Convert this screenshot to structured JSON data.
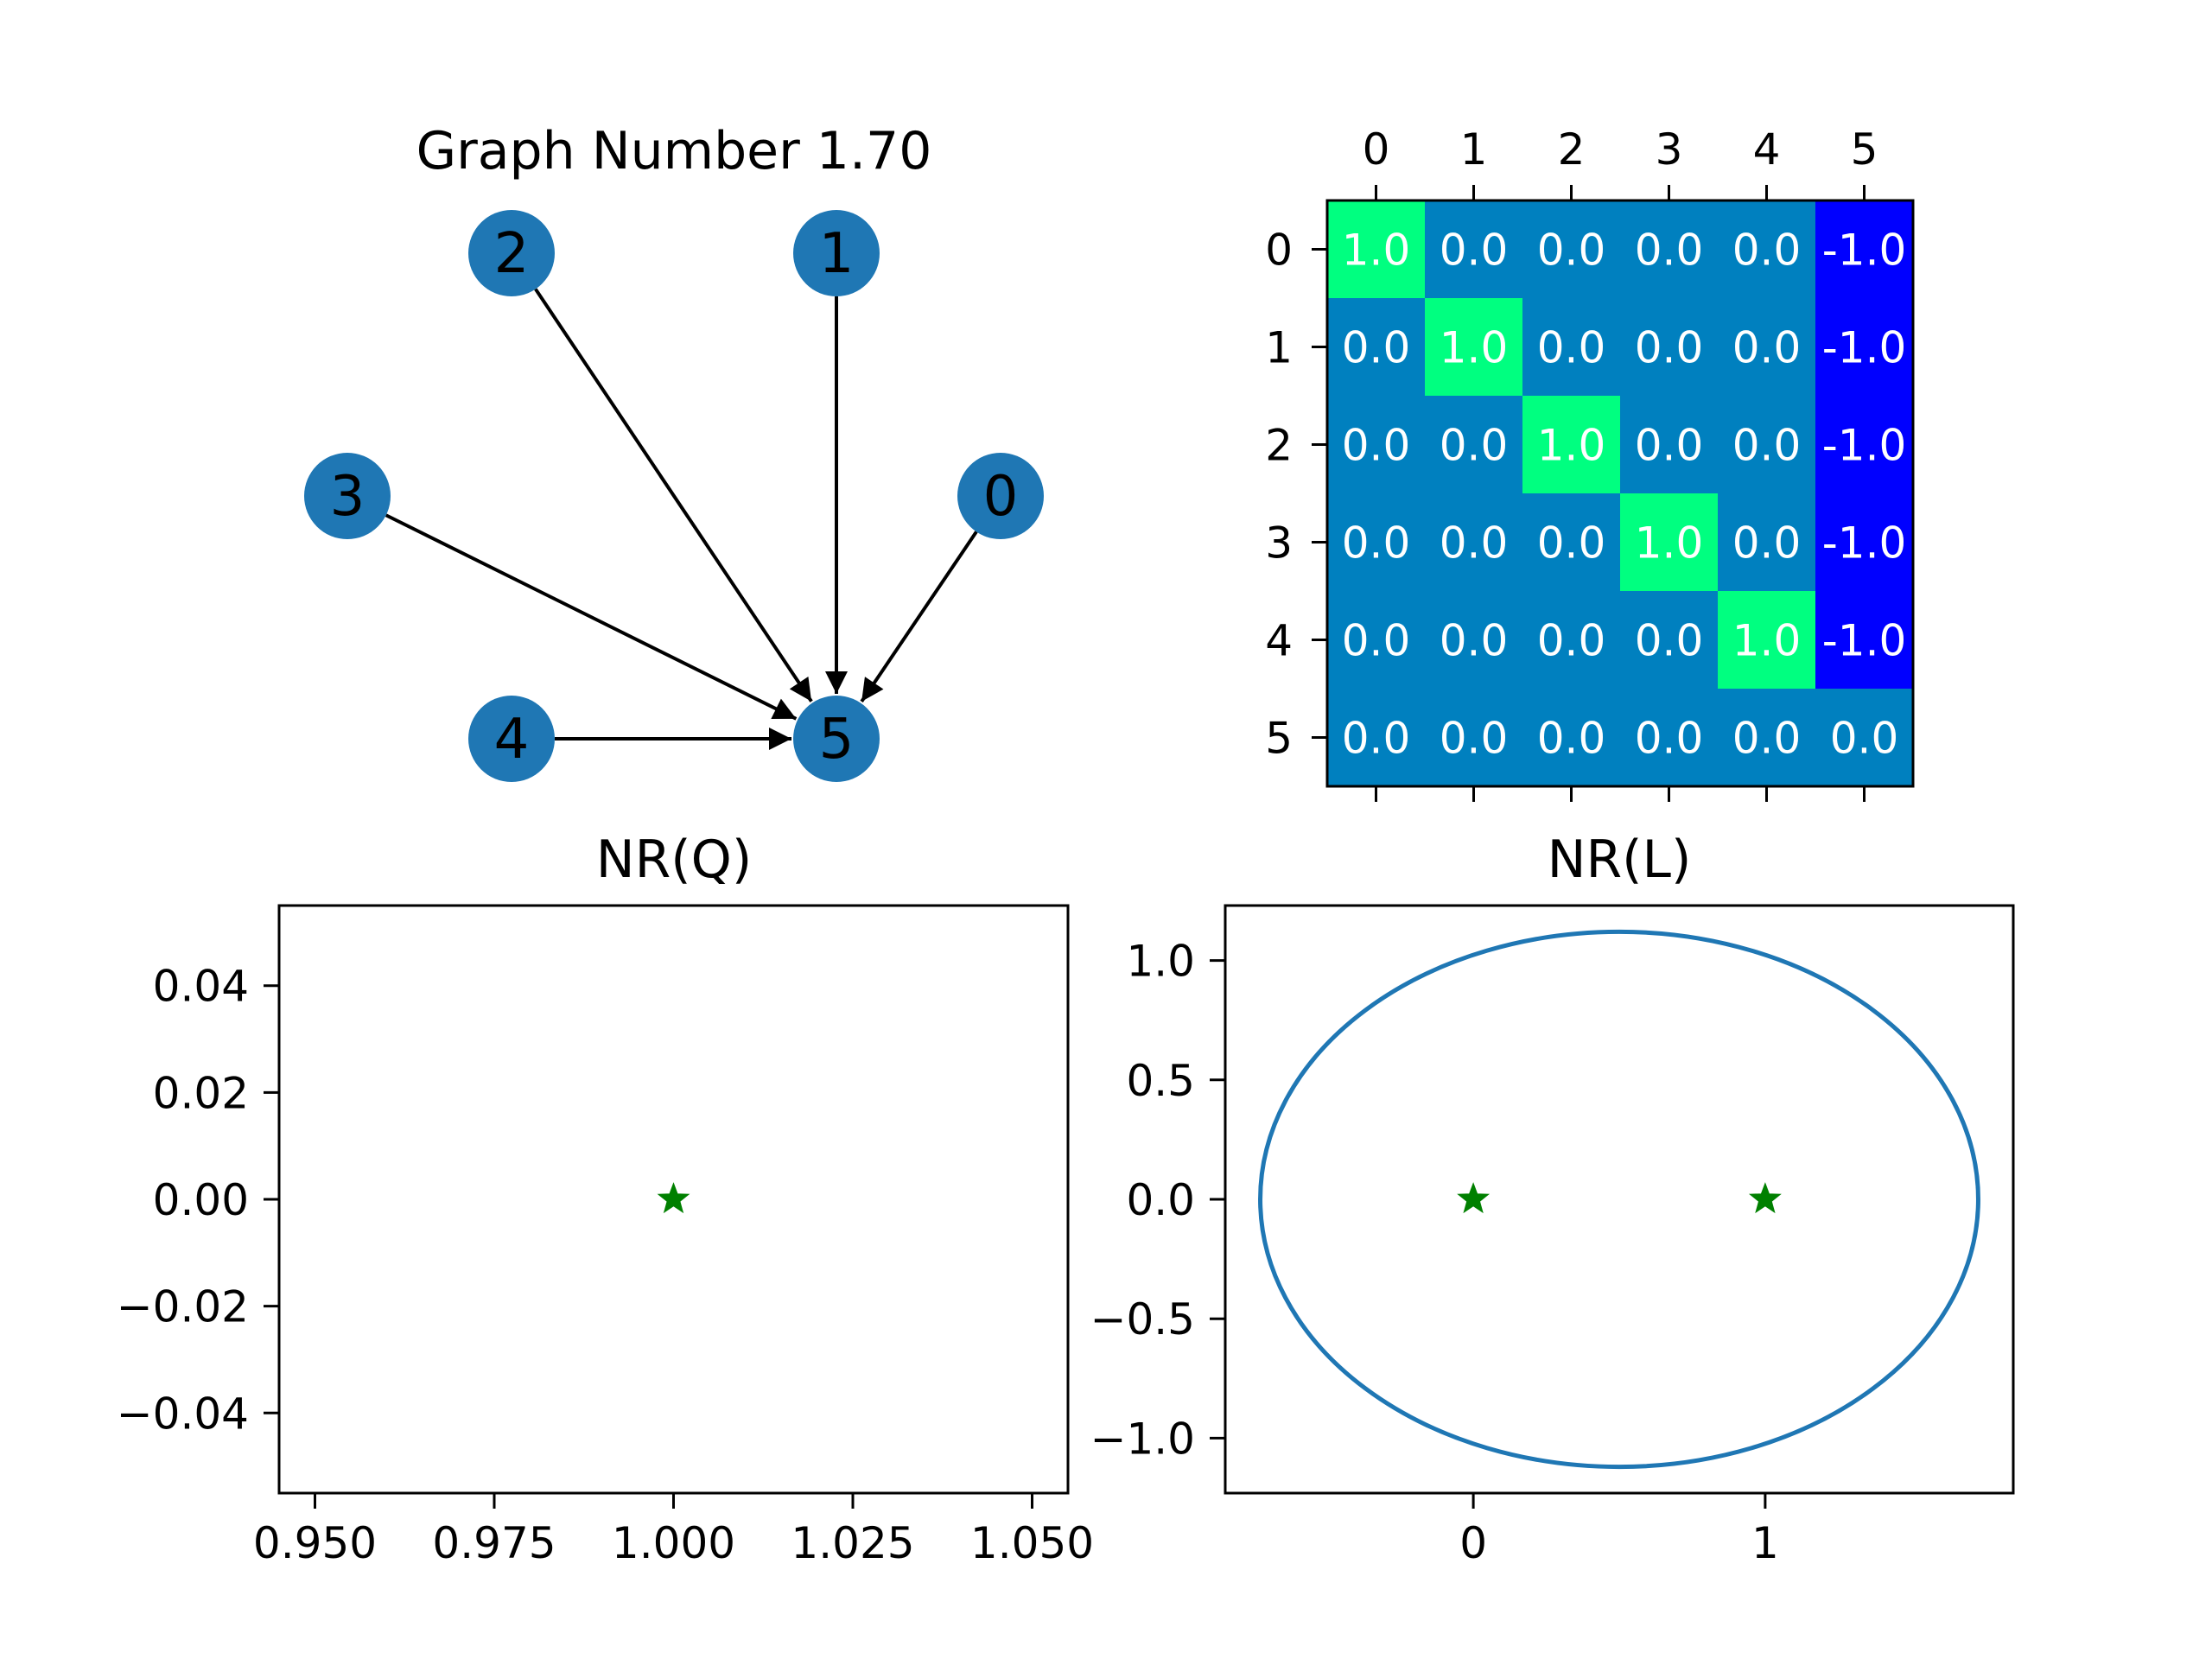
{
  "chart_data": [
    {
      "type": "graph",
      "title": "Graph Number 1.70",
      "nodes": [
        "0",
        "1",
        "2",
        "3",
        "4",
        "5"
      ],
      "edges": [
        [
          "0",
          "5"
        ],
        [
          "1",
          "5"
        ],
        [
          "2",
          "5"
        ],
        [
          "3",
          "5"
        ],
        [
          "4",
          "5"
        ]
      ],
      "colors": {
        "node": "#1f77b4",
        "edge": "#000000"
      }
    },
    {
      "type": "heatmap",
      "title": "",
      "row_labels": [
        "0",
        "1",
        "2",
        "3",
        "4",
        "5"
      ],
      "col_labels": [
        "0",
        "1",
        "2",
        "3",
        "4",
        "5"
      ],
      "values": [
        [
          1.0,
          0.0,
          0.0,
          0.0,
          0.0,
          -1.0
        ],
        [
          0.0,
          1.0,
          0.0,
          0.0,
          0.0,
          -1.0
        ],
        [
          0.0,
          0.0,
          1.0,
          0.0,
          0.0,
          -1.0
        ],
        [
          0.0,
          0.0,
          0.0,
          1.0,
          0.0,
          -1.0
        ],
        [
          0.0,
          0.0,
          0.0,
          0.0,
          1.0,
          -1.0
        ],
        [
          0.0,
          0.0,
          0.0,
          0.0,
          0.0,
          0.0
        ]
      ],
      "colors": {
        "neg": "#0000ff",
        "zero": "#0080bf",
        "pos": "#00ff80"
      },
      "xaxis_position": "top"
    },
    {
      "type": "scatter",
      "title": "NR(Q)",
      "xlim": [
        0.945,
        1.055
      ],
      "ylim": [
        -0.055,
        0.055
      ],
      "xticks": [
        "0.950",
        "0.975",
        "1.000",
        "1.025",
        "1.050"
      ],
      "xtick_values": [
        0.95,
        0.975,
        1.0,
        1.025,
        1.05
      ],
      "yticks": [
        "0.04",
        "0.02",
        "0.00",
        "−0.02",
        "−0.04"
      ],
      "ytick_values": [
        0.04,
        0.02,
        0.0,
        -0.02,
        -0.04
      ],
      "points": [
        {
          "x": 1.0,
          "y": 0.0
        }
      ],
      "colors": {
        "marker": "#008000"
      }
    },
    {
      "type": "scatter",
      "title": "NR(L)",
      "xlim": [
        -0.85,
        1.85
      ],
      "ylim": [
        -1.23,
        1.23
      ],
      "xticks": [
        "0",
        "1"
      ],
      "xtick_values": [
        0,
        1
      ],
      "yticks": [
        "1.0",
        "0.5",
        "0.0",
        "−0.5",
        "−1.0"
      ],
      "ytick_values": [
        1.0,
        0.5,
        0.0,
        -0.5,
        -1.0
      ],
      "points": [
        {
          "x": 0,
          "y": 0
        },
        {
          "x": 1,
          "y": 0
        }
      ],
      "ellipse": {
        "cx": 0.5,
        "cy": 0.0,
        "rx": 1.23,
        "ry": 1.12
      },
      "colors": {
        "marker": "#008000",
        "curve": "#1f77b4"
      }
    }
  ]
}
